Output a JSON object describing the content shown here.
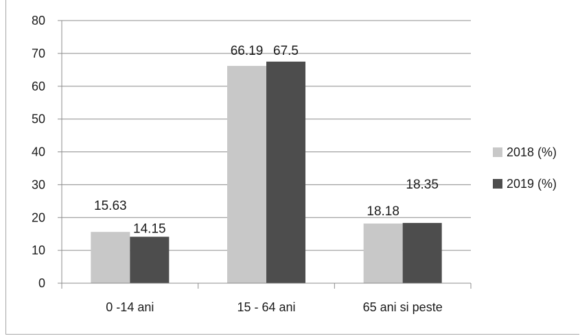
{
  "chart_data": {
    "type": "bar",
    "title": "",
    "xlabel": "",
    "ylabel": "",
    "categories": [
      "0 -14 ani",
      "15 - 64 ani",
      "65 ani si peste"
    ],
    "series": [
      {
        "name": "2018 (%)",
        "values": [
          15.63,
          66.19,
          18.18
        ],
        "labels": [
          "15.63",
          "66.19",
          "18.18"
        ],
        "color": "#c8c8c8"
      },
      {
        "name": "2019 (%)",
        "values": [
          14.15,
          67.5,
          18.35
        ],
        "labels": [
          "14.15",
          "67.5",
          "18.35"
        ],
        "color": "#4d4d4d"
      }
    ],
    "ylim": [
      0,
      80
    ],
    "yticks": [
      "0",
      "10",
      "20",
      "30",
      "40",
      "50",
      "60",
      "70",
      "80"
    ],
    "grid": true,
    "legend": "right"
  }
}
